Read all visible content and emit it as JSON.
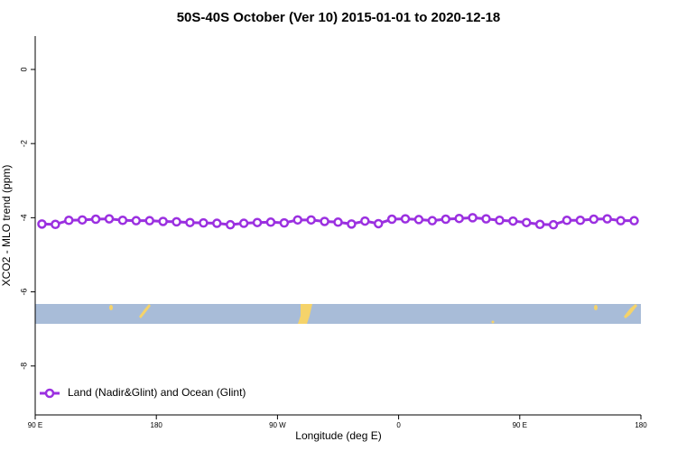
{
  "chart_data": {
    "type": "line",
    "title": "50S-40S October (Ver 10)   2015-01-01 to 2020-12-18",
    "xlabel": "Longitude (deg E)",
    "ylabel": "XCO2 - MLO trend (ppm)",
    "x": [
      95,
      105,
      115,
      125,
      135,
      145,
      155,
      165,
      175,
      185,
      195,
      205,
      215,
      225,
      235,
      245,
      255,
      265,
      275,
      285,
      295,
      305,
      315,
      325,
      335,
      345,
      355,
      365,
      375,
      385,
      395,
      405,
      415,
      425,
      435,
      445,
      455,
      465,
      475,
      485,
      495,
      505,
      515,
      525,
      535
    ],
    "series": [
      {
        "name": "Land (Nadir&Glint) and Ocean (Glint)",
        "color": "#9b30e0",
        "values": [
          -4.17,
          -4.18,
          -4.07,
          -4.06,
          -4.04,
          -4.03,
          -4.07,
          -4.08,
          -4.08,
          -4.1,
          -4.11,
          -4.13,
          -4.14,
          -4.15,
          -4.19,
          -4.15,
          -4.13,
          -4.12,
          -4.14,
          -4.06,
          -4.06,
          -4.1,
          -4.12,
          -4.17,
          -4.09,
          -4.16,
          -4.04,
          -4.03,
          -4.05,
          -4.08,
          -4.04,
          -4.02,
          -4.0,
          -4.03,
          -4.07,
          -4.09,
          -4.13,
          -4.18,
          -4.19,
          -4.07,
          -4.07,
          -4.04,
          -4.03,
          -4.08,
          -4.08
        ]
      }
    ],
    "xlim": [
      90,
      540
    ],
    "xticks": [
      {
        "value": 90,
        "label": "90 E"
      },
      180,
      {
        "value": 270,
        "label": "90 W"
      },
      {
        "value": 360,
        "label": "0"
      },
      {
        "value": 450,
        "label": "90 E"
      },
      {
        "value": 540,
        "label": "180"
      }
    ],
    "ylim": [
      -9.32,
      0.9
    ],
    "yticks": [
      0,
      -2,
      -4,
      -6,
      -8
    ],
    "legend": "bottom-left"
  }
}
